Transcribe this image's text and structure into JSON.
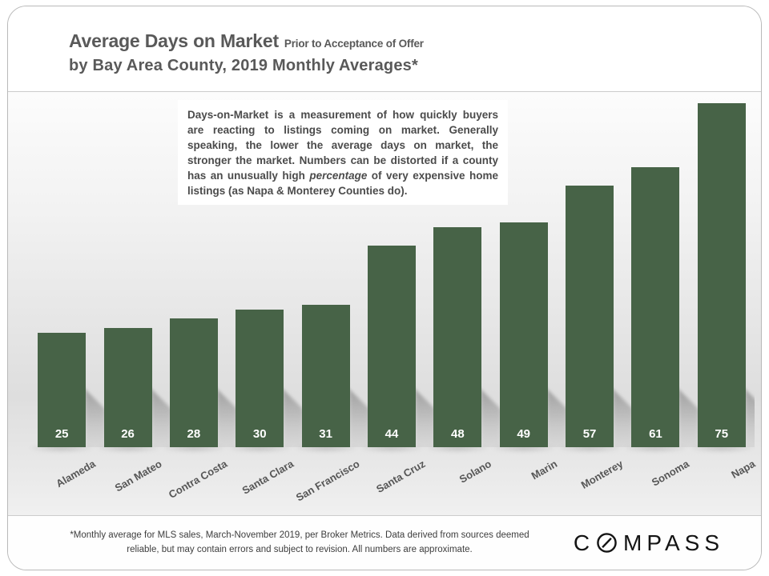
{
  "header": {
    "title_main": "Average Days on Market",
    "title_suffix": "Prior to Acceptance of Offer",
    "title_line2": "by Bay Area County, 2019 Monthly Averages*"
  },
  "description_box": {
    "text_before_italic": "Days-on-Market is a measurement of how quickly buyers are reacting to listings coming on market.  Generally speaking, the lower the average days on market, the stronger the market. Numbers can be distorted if a county has an unusually high ",
    "italic_word": "percentage",
    "text_after_italic": " of very expensive home listings (as Napa & Monterey Counties do)."
  },
  "chart_data": {
    "type": "bar",
    "title": "Average Days on Market Prior to Acceptance of Offer by Bay Area County, 2019 Monthly Averages*",
    "categories": [
      "Alameda",
      "San Mateo",
      "Contra Costa",
      "Santa Clara",
      "San Francisco",
      "Santa Cruz",
      "Solano",
      "Marin",
      "Monterey",
      "Sonoma",
      "Napa"
    ],
    "values": [
      25,
      26,
      28,
      30,
      31,
      44,
      48,
      49,
      57,
      61,
      75
    ],
    "xlabel": "",
    "ylabel": "",
    "ylim": [
      0,
      75
    ],
    "grid": false,
    "legend": false,
    "value_labels_position": "inside-bottom",
    "bar_color": "#476347",
    "value_label_color": "#ffffff"
  },
  "footer": {
    "footnote": "*Monthly average for MLS sales, March-November 2019, per Broker Metrics. Data derived from sources deemed reliable, but may contain errors and subject to revision. All numbers are approximate.",
    "logo": {
      "part1": "C",
      "part2": "MPASS"
    }
  },
  "colors": {
    "bar": "#476347",
    "title_text": "#595959",
    "value_label": "#ffffff"
  }
}
